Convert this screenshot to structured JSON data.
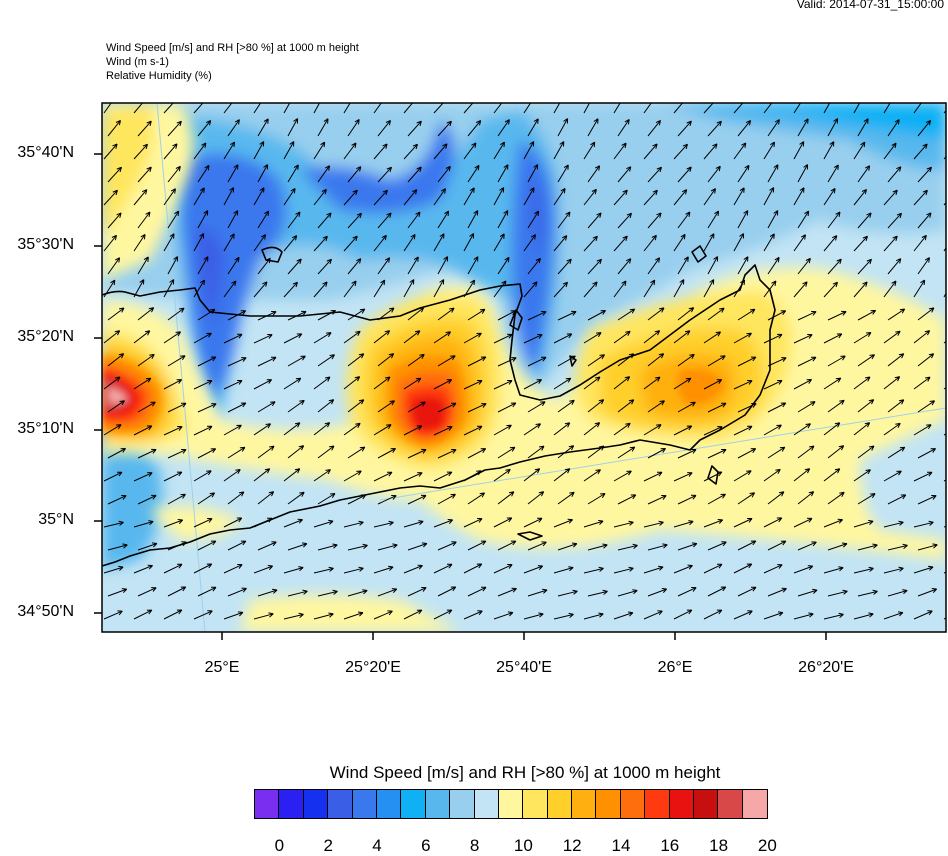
{
  "valid_time": "Valid: 2014-07-31_15:00:00",
  "header": {
    "line1": "Wind Speed [m/s] and RH [>80 %] at 1000 m height",
    "line2": "Wind   (m s-1)",
    "line3": "Relative Humidity   (%)"
  },
  "lat_labels": [
    "35°40'N",
    "35°30'N",
    "35°20'N",
    "35°10'N",
    "35°N",
    "34°50'N"
  ],
  "lon_labels": [
    "25°E",
    "25°20'E",
    "25°40'E",
    "26°E",
    "26°20'E"
  ],
  "colorbar": {
    "title": "Wind Speed [m/s] and RH [>80 %] at 1000 m height",
    "colors": [
      "#7a2ef0",
      "#2a20f2",
      "#1630f0",
      "#3a5ee6",
      "#3a78ee",
      "#2690f2",
      "#10b0f4",
      "#58b8ee",
      "#98cfee",
      "#c2e4f4",
      "#fff7a0",
      "#ffe65e",
      "#ffcf2a",
      "#ffb010",
      "#ff9000",
      "#ff6e0c",
      "#ff3a10",
      "#e81210",
      "#c80f0f",
      "#d84848",
      "#f6a8a8"
    ],
    "ticks": [
      "0",
      "2",
      "4",
      "6",
      "8",
      "10",
      "12",
      "14",
      "16",
      "18",
      "20"
    ]
  },
  "legend_colors": {
    "map_background": "#c2e4f4",
    "coastline": "#000000",
    "wind_vector": "#000000"
  }
}
